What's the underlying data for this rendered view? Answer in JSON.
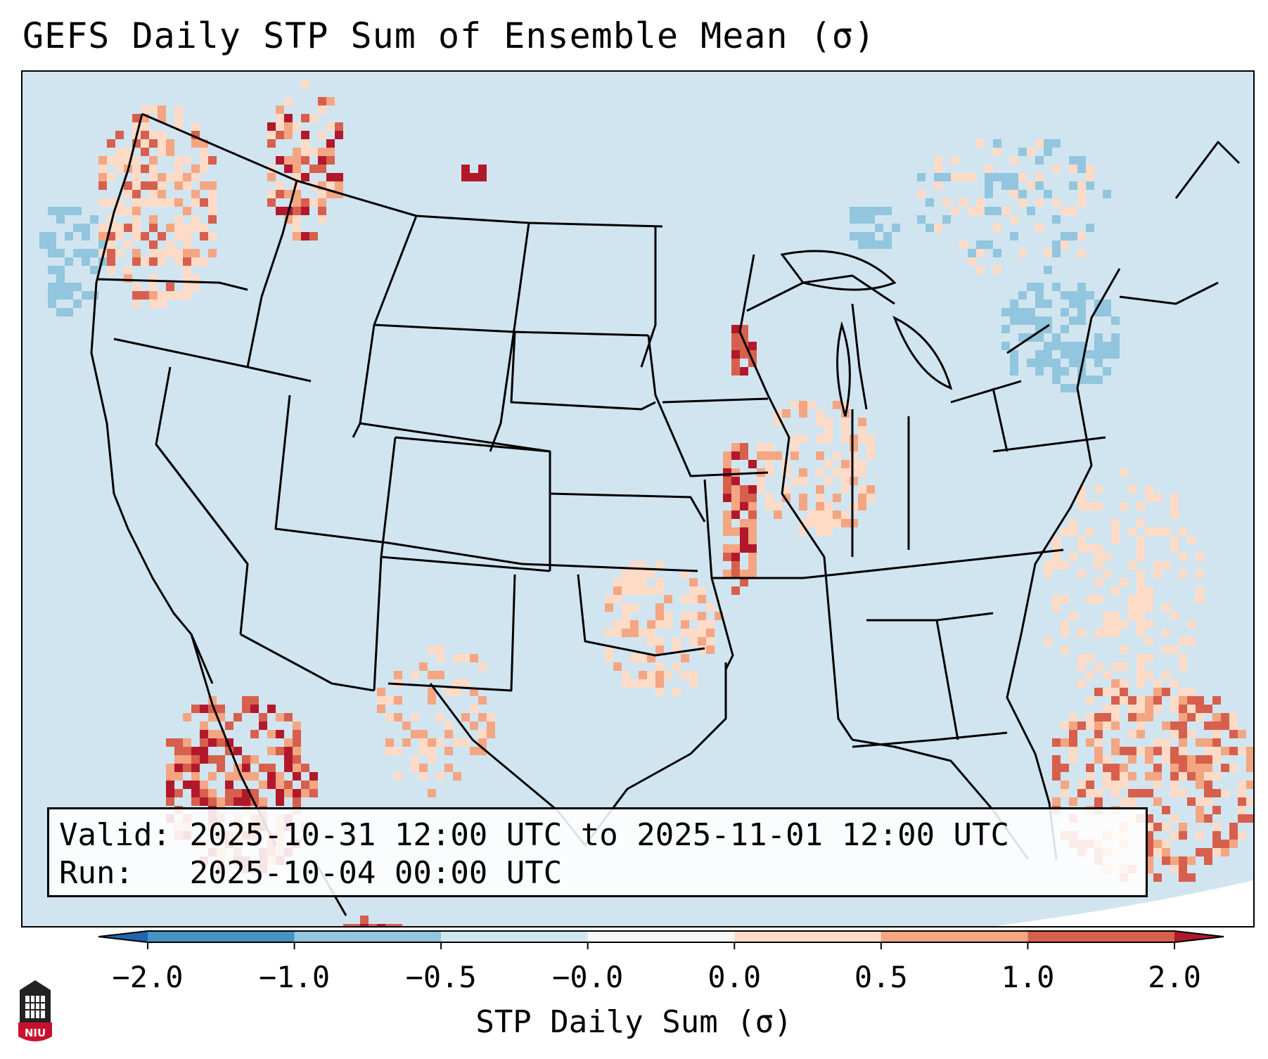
{
  "title": "GEFS Daily STP Sum of Ensemble Mean (σ)",
  "info": {
    "valid_label": "Valid:",
    "valid_value": "2025-10-31 12:00 UTC to 2025-11-01 12:00 UTC",
    "run_label": "Run:",
    "run_value": "2025-10-04 00:00 UTC"
  },
  "colorbar": {
    "title": "STP Daily Sum (σ)",
    "ticks": [
      "−2.0",
      "−1.0",
      "−0.5",
      "−0.0",
      "0.0",
      "0.5",
      "1.0",
      "2.0"
    ],
    "bins": [
      {
        "range": "< -2.0",
        "color": "#2166ac"
      },
      {
        "range": "-2.0 to -1.0",
        "color": "#4393c3"
      },
      {
        "range": "-1.0 to -0.5",
        "color": "#92c5de"
      },
      {
        "range": "-0.5 to -0.0",
        "color": "#d1e5f0"
      },
      {
        "range": "-0.0 to 0.0",
        "color": "#f7f7f7"
      },
      {
        "range": "0.0 to 0.5",
        "color": "#fddbc7"
      },
      {
        "range": "0.5 to 1.0",
        "color": "#f4a582"
      },
      {
        "range": "1.0 to 2.0",
        "color": "#d6604d"
      },
      {
        "range": "> 2.0",
        "color": "#b2182b"
      }
    ]
  },
  "map": {
    "region": "Continental United States",
    "background_value_color": "#d1e5f0",
    "highlight_areas": [
      {
        "name": "Pacific Northwest",
        "level": "0.0 to 2.0"
      },
      {
        "name": "Iowa / Missouri corridor",
        "level": "> 2.0"
      },
      {
        "name": "Arkansas / Oklahoma",
        "level": "0.5 to 2.0"
      },
      {
        "name": "Baja California",
        "level": "> 2.0"
      },
      {
        "name": "Bahamas / western Atlantic",
        "level": "0.5 to 2.0"
      },
      {
        "name": "Great Lakes / New York",
        "level": "-1.0 to -0.5"
      }
    ]
  },
  "logo": {
    "text": "NIU",
    "color": "#c8102e"
  }
}
